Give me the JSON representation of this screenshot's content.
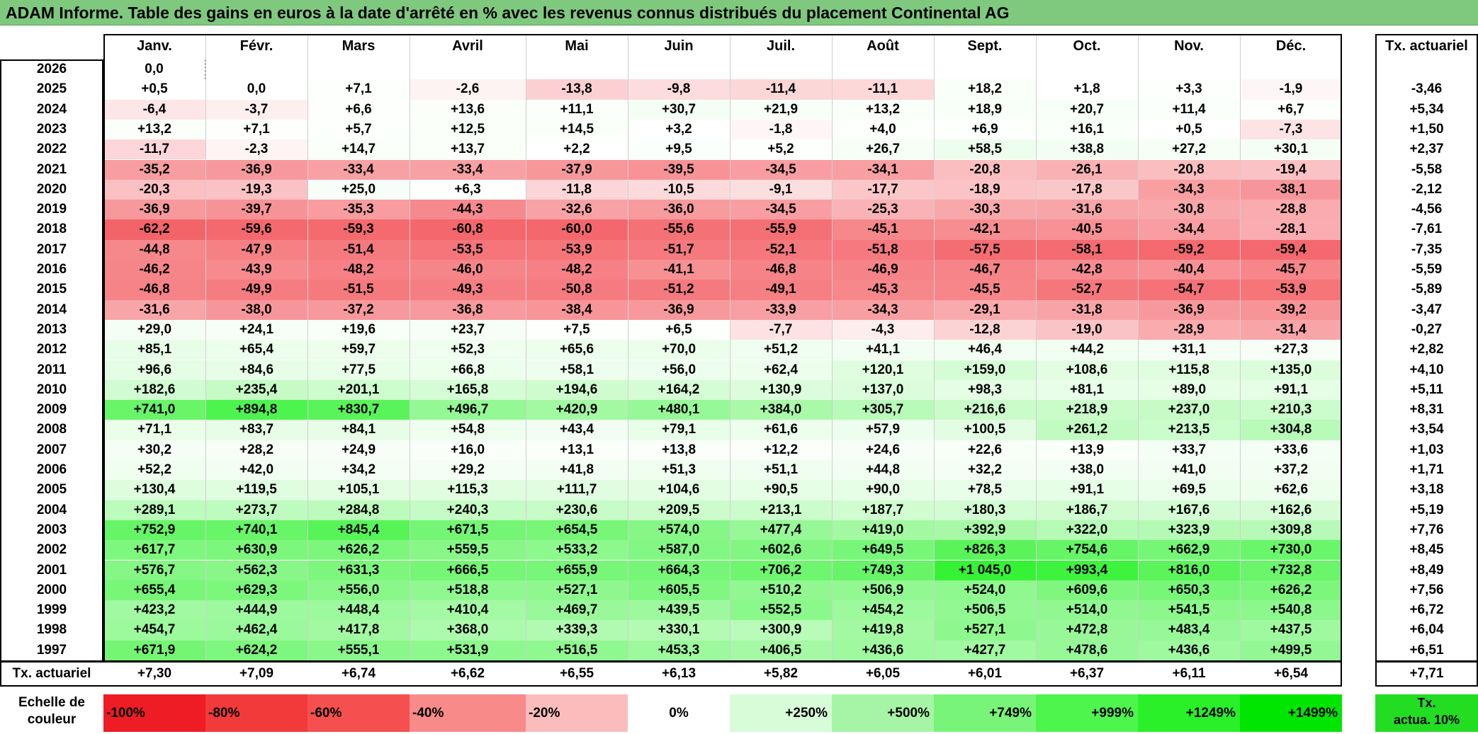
{
  "title": "ADAM Informe. Table des gains en euros à la date d'arrêté en % avec les revenus connus distribués du placement Continental AG",
  "months": [
    "Janv.",
    "Févr.",
    "Mars",
    "Avril",
    "Mai",
    "Juin",
    "Juil.",
    "Août",
    "Sept.",
    "Oct.",
    "Nov.",
    "Déc."
  ],
  "rate_header": "Tx. actuariel",
  "rows": [
    {
      "year": "2026",
      "values": [
        "0,0",
        "",
        "",
        "",
        "",
        "",
        "",
        "",
        "",
        "",
        "",
        ""
      ],
      "rate": ""
    },
    {
      "year": "2025",
      "values": [
        "+0,5",
        "0,0",
        "+7,1",
        "-2,6",
        "-13,8",
        "-9,8",
        "-11,4",
        "-11,1",
        "+18,2",
        "+1,8",
        "+3,3",
        "-1,9"
      ],
      "rate": "-3,46"
    },
    {
      "year": "2024",
      "values": [
        "-6,4",
        "-3,7",
        "+6,6",
        "+13,6",
        "+11,1",
        "+30,7",
        "+21,9",
        "+13,2",
        "+18,9",
        "+20,7",
        "+11,4",
        "+6,7"
      ],
      "rate": "+5,34"
    },
    {
      "year": "2023",
      "values": [
        "+13,2",
        "+7,1",
        "+5,7",
        "+12,5",
        "+14,5",
        "+3,2",
        "-1,8",
        "+4,0",
        "+6,9",
        "+16,1",
        "+0,5",
        "-7,3"
      ],
      "rate": "+1,50"
    },
    {
      "year": "2022",
      "values": [
        "-11,7",
        "-2,3",
        "+14,7",
        "+13,7",
        "+2,2",
        "+9,5",
        "+5,2",
        "+26,7",
        "+58,5",
        "+38,8",
        "+27,2",
        "+30,1"
      ],
      "rate": "+2,37"
    },
    {
      "year": "2021",
      "values": [
        "-35,2",
        "-36,9",
        "-33,4",
        "-33,4",
        "-37,9",
        "-39,5",
        "-34,5",
        "-34,1",
        "-20,8",
        "-26,1",
        "-20,8",
        "-19,4"
      ],
      "rate": "-5,58"
    },
    {
      "year": "2020",
      "values": [
        "-20,3",
        "-19,3",
        "+25,0",
        "+6,3",
        "-11,8",
        "-10,5",
        "-9,1",
        "-17,7",
        "-18,9",
        "-17,8",
        "-34,3",
        "-38,1"
      ],
      "rate": "-2,12"
    },
    {
      "year": "2019",
      "values": [
        "-36,9",
        "-39,7",
        "-35,3",
        "-44,3",
        "-32,6",
        "-36,0",
        "-34,5",
        "-25,3",
        "-30,3",
        "-31,6",
        "-30,8",
        "-28,8"
      ],
      "rate": "-4,56"
    },
    {
      "year": "2018",
      "values": [
        "-62,2",
        "-59,6",
        "-59,3",
        "-60,8",
        "-60,0",
        "-55,6",
        "-55,9",
        "-45,1",
        "-42,1",
        "-40,5",
        "-34,4",
        "-28,1"
      ],
      "rate": "-7,61"
    },
    {
      "year": "2017",
      "values": [
        "-44,8",
        "-47,9",
        "-51,4",
        "-53,5",
        "-53,9",
        "-51,7",
        "-52,1",
        "-51,8",
        "-57,5",
        "-58,1",
        "-59,2",
        "-59,4"
      ],
      "rate": "-7,35"
    },
    {
      "year": "2016",
      "values": [
        "-46,2",
        "-43,9",
        "-48,2",
        "-46,0",
        "-48,2",
        "-41,1",
        "-46,8",
        "-46,9",
        "-46,7",
        "-42,8",
        "-40,4",
        "-45,7"
      ],
      "rate": "-5,59"
    },
    {
      "year": "2015",
      "values": [
        "-46,8",
        "-49,9",
        "-51,5",
        "-49,3",
        "-50,8",
        "-51,2",
        "-49,1",
        "-45,3",
        "-45,5",
        "-52,7",
        "-54,7",
        "-53,9"
      ],
      "rate": "-5,89"
    },
    {
      "year": "2014",
      "values": [
        "-31,6",
        "-38,0",
        "-37,2",
        "-36,8",
        "-38,4",
        "-36,9",
        "-33,9",
        "-34,3",
        "-29,1",
        "-31,8",
        "-36,9",
        "-39,2"
      ],
      "rate": "-3,47"
    },
    {
      "year": "2013",
      "values": [
        "+29,0",
        "+24,1",
        "+19,6",
        "+23,7",
        "+7,5",
        "+6,5",
        "-7,7",
        "-4,3",
        "-12,8",
        "-19,0",
        "-28,9",
        "-31,4"
      ],
      "rate": "-0,27"
    },
    {
      "year": "2012",
      "values": [
        "+85,1",
        "+65,4",
        "+59,7",
        "+52,3",
        "+65,6",
        "+70,0",
        "+51,2",
        "+41,1",
        "+46,4",
        "+44,2",
        "+31,1",
        "+27,3"
      ],
      "rate": "+2,82"
    },
    {
      "year": "2011",
      "values": [
        "+96,6",
        "+84,6",
        "+77,5",
        "+66,8",
        "+58,1",
        "+56,0",
        "+62,4",
        "+120,1",
        "+159,0",
        "+108,6",
        "+115,8",
        "+135,0"
      ],
      "rate": "+4,10"
    },
    {
      "year": "2010",
      "values": [
        "+182,6",
        "+235,4",
        "+201,1",
        "+165,8",
        "+194,6",
        "+164,2",
        "+130,9",
        "+137,0",
        "+98,3",
        "+81,1",
        "+89,0",
        "+91,1"
      ],
      "rate": "+5,11"
    },
    {
      "year": "2009",
      "values": [
        "+741,0",
        "+894,8",
        "+830,7",
        "+496,7",
        "+420,9",
        "+480,1",
        "+384,0",
        "+305,7",
        "+216,6",
        "+218,9",
        "+237,0",
        "+210,3"
      ],
      "rate": "+8,31"
    },
    {
      "year": "2008",
      "values": [
        "+71,1",
        "+83,7",
        "+84,1",
        "+54,8",
        "+43,4",
        "+79,1",
        "+61,6",
        "+57,9",
        "+100,5",
        "+261,2",
        "+213,5",
        "+304,8"
      ],
      "rate": "+3,54"
    },
    {
      "year": "2007",
      "values": [
        "+30,2",
        "+28,2",
        "+24,9",
        "+16,0",
        "+13,1",
        "+13,8",
        "+12,2",
        "+24,6",
        "+22,6",
        "+13,9",
        "+33,7",
        "+33,6"
      ],
      "rate": "+1,03"
    },
    {
      "year": "2006",
      "values": [
        "+52,2",
        "+42,0",
        "+34,2",
        "+29,2",
        "+41,8",
        "+51,3",
        "+51,1",
        "+44,8",
        "+32,2",
        "+38,0",
        "+41,0",
        "+37,2"
      ],
      "rate": "+1,71"
    },
    {
      "year": "2005",
      "values": [
        "+130,4",
        "+119,5",
        "+105,1",
        "+115,3",
        "+111,7",
        "+104,6",
        "+90,5",
        "+90,0",
        "+78,5",
        "+91,1",
        "+69,5",
        "+62,6"
      ],
      "rate": "+3,18"
    },
    {
      "year": "2004",
      "values": [
        "+289,1",
        "+273,7",
        "+284,8",
        "+240,3",
        "+230,6",
        "+209,5",
        "+213,1",
        "+187,7",
        "+180,3",
        "+186,7",
        "+167,6",
        "+162,6"
      ],
      "rate": "+5,19"
    },
    {
      "year": "2003",
      "values": [
        "+752,9",
        "+740,1",
        "+845,4",
        "+671,5",
        "+654,5",
        "+574,0",
        "+477,4",
        "+419,0",
        "+392,9",
        "+322,0",
        "+323,9",
        "+309,8"
      ],
      "rate": "+7,76"
    },
    {
      "year": "2002",
      "values": [
        "+617,7",
        "+630,9",
        "+626,2",
        "+559,5",
        "+533,2",
        "+587,0",
        "+602,6",
        "+649,5",
        "+826,3",
        "+754,6",
        "+662,9",
        "+730,0"
      ],
      "rate": "+8,45"
    },
    {
      "year": "2001",
      "values": [
        "+576,7",
        "+562,3",
        "+631,3",
        "+666,5",
        "+655,9",
        "+664,3",
        "+706,2",
        "+749,3",
        "+1 045,0",
        "+993,4",
        "+816,0",
        "+732,8"
      ],
      "rate": "+8,49"
    },
    {
      "year": "2000",
      "values": [
        "+655,4",
        "+629,3",
        "+556,0",
        "+518,8",
        "+527,1",
        "+605,5",
        "+510,2",
        "+506,9",
        "+524,0",
        "+609,6",
        "+650,3",
        "+626,2"
      ],
      "rate": "+7,56"
    },
    {
      "year": "1999",
      "values": [
        "+423,2",
        "+444,9",
        "+448,4",
        "+410,4",
        "+469,7",
        "+439,5",
        "+552,5",
        "+454,2",
        "+506,5",
        "+514,0",
        "+541,5",
        "+540,8"
      ],
      "rate": "+6,72"
    },
    {
      "year": "1998",
      "values": [
        "+454,7",
        "+462,4",
        "+417,8",
        "+368,0",
        "+339,3",
        "+330,1",
        "+300,9",
        "+419,8",
        "+527,1",
        "+472,8",
        "+483,4",
        "+437,5"
      ],
      "rate": "+6,04"
    },
    {
      "year": "1997",
      "values": [
        "+671,9",
        "+624,2",
        "+555,1",
        "+531,9",
        "+516,5",
        "+453,3",
        "+406,5",
        "+436,6",
        "+427,7",
        "+478,6",
        "+436,6",
        "+499,5"
      ],
      "rate": "+6,51"
    }
  ],
  "summary": {
    "label": "Tx. actuariel",
    "values": [
      "+7,30",
      "+7,09",
      "+6,74",
      "+6,62",
      "+6,55",
      "+6,13",
      "+5,82",
      "+6,05",
      "+6,01",
      "+6,37",
      "+6,11",
      "+6,54"
    ],
    "overall": "+7,71"
  },
  "scale": {
    "label_line1": "Echelle de",
    "label_line2": "couleur",
    "items": [
      {
        "text": "-100%",
        "color": "#ee1c24",
        "align": "left"
      },
      {
        "text": "-80%",
        "color": "#f23a3a",
        "align": "left"
      },
      {
        "text": "-60%",
        "color": "#f5504f",
        "align": "left"
      },
      {
        "text": "-40%",
        "color": "#f88a8a",
        "align": "left"
      },
      {
        "text": "-20%",
        "color": "#fbbcbc",
        "align": "left"
      },
      {
        "text": "0%",
        "color": "#ffffff",
        "align": "center"
      },
      {
        "text": "+250%",
        "color": "#d8fcd8",
        "align": "right"
      },
      {
        "text": "+500%",
        "color": "#a6f5a6",
        "align": "right"
      },
      {
        "text": "+749%",
        "color": "#78f578",
        "align": "right"
      },
      {
        "text": "+999%",
        "color": "#4df54d",
        "align": "right"
      },
      {
        "text": "+1249%",
        "color": "#29f029",
        "align": "right"
      },
      {
        "text": "+1499%",
        "color": "#00e600",
        "align": "right"
      }
    ],
    "extra_line1": "Tx.",
    "extra_line2": "actua. 10%",
    "extra_color": "#22dd22"
  }
}
